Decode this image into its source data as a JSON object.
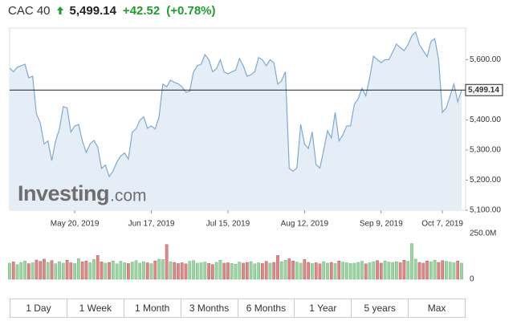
{
  "header": {
    "symbol": "CAC 40",
    "price": "5,499.14",
    "change": "+42.52",
    "change_percent": "(+0.78%)"
  },
  "watermark": {
    "brand": "Investing",
    "suffix": ".com"
  },
  "range_buttons": [
    "1 Day",
    "1 Week",
    "1 Month",
    "3 Months",
    "6 Months",
    "1 Year",
    "5 years",
    "Max"
  ],
  "chart_data": [
    {
      "type": "line",
      "color": "#7fa9d1",
      "fill": "#e5eef6",
      "values": [
        5572,
        5560,
        5575,
        5580,
        5585,
        5540,
        5545,
        5420,
        5390,
        5320,
        5330,
        5265,
        5330,
        5370,
        5444,
        5440,
        5360,
        5380,
        5385,
        5330,
        5292,
        5320,
        5332,
        5310,
        5239,
        5250,
        5212,
        5230,
        5260,
        5280,
        5290,
        5270,
        5359,
        5370,
        5399,
        5410,
        5372,
        5380,
        5370,
        5410,
        5519,
        5510,
        5532,
        5525,
        5520,
        5510,
        5492,
        5495,
        5559,
        5580,
        5585,
        5617,
        5600,
        5560,
        5570,
        5600,
        5560,
        5553,
        5560,
        5565,
        5604,
        5580,
        5545,
        5550,
        5560,
        5607,
        5600,
        5580,
        5600,
        5590,
        5519,
        5530,
        5560,
        5239,
        5230,
        5240,
        5385,
        5320,
        5305,
        5360,
        5252,
        5240,
        5300,
        5364,
        5340,
        5425,
        5330,
        5350,
        5380,
        5380,
        5452,
        5470,
        5505,
        5480,
        5540,
        5612,
        5600,
        5590,
        5600,
        5600,
        5625,
        5652,
        5640,
        5630,
        5650,
        5679,
        5692,
        5650,
        5630,
        5610,
        5660,
        5670,
        5600,
        5425,
        5440,
        5480,
        5519,
        5460,
        5499.14
      ],
      "ylim": [
        5100,
        5705
      ],
      "yticks": [
        {
          "value": 5100,
          "label": "5,100.00"
        },
        {
          "value": 5200,
          "label": "5,200.00"
        },
        {
          "value": 5300,
          "label": "5,300.00"
        },
        {
          "value": 5400,
          "label": "5,400.00"
        },
        {
          "value": 5600,
          "label": "5,600.00"
        }
      ],
      "xticks": [
        {
          "value": 17,
          "label": "May 20, 2019"
        },
        {
          "value": 37,
          "label": "Jun 17, 2019"
        },
        {
          "value": 57,
          "label": "Jul 15, 2019"
        },
        {
          "value": 77,
          "label": "Aug 12, 2019"
        },
        {
          "value": 97,
          "label": "Sep 9, 2019"
        },
        {
          "value": 113,
          "label": "Oct 7, 2019"
        }
      ],
      "reference_line": {
        "value": 5499.14,
        "label": "5,499.14"
      }
    },
    {
      "type": "volume",
      "up_color": "#9fd3a5",
      "down_color": "#d98a8a",
      "values": [
        88,
        95,
        80,
        92,
        100,
        85,
        90,
        105,
        98,
        110,
        92,
        102,
        85,
        96,
        88,
        104,
        90,
        86,
        112,
        95,
        100,
        90,
        108,
        130,
        95,
        88,
        92,
        100,
        84,
        98,
        90,
        86,
        94,
        102,
        88,
        96,
        90,
        85,
        100,
        110,
        108,
        190,
        95,
        92,
        86,
        90,
        84,
        98,
        102,
        88,
        90,
        94,
        86,
        80,
        92,
        104,
        88,
        90,
        86,
        82,
        94,
        88,
        92,
        96,
        84,
        90,
        86,
        98,
        88,
        92,
        130,
        96,
        104,
        112,
        100,
        94,
        88,
        108,
        92,
        86,
        90,
        84,
        96,
        88,
        92,
        86,
        100,
        94,
        90,
        86,
        88,
        92,
        98,
        84,
        90,
        96,
        102,
        88,
        100,
        94,
        92,
        96,
        90,
        104,
        98,
        195,
        110,
        92,
        88,
        100,
        96,
        104,
        92,
        102,
        98,
        94,
        90,
        100,
        88
      ],
      "ylim": [
        0,
        250
      ],
      "yticks": [
        {
          "value": 250,
          "label": "250.0M"
        },
        0
      ]
    }
  ]
}
